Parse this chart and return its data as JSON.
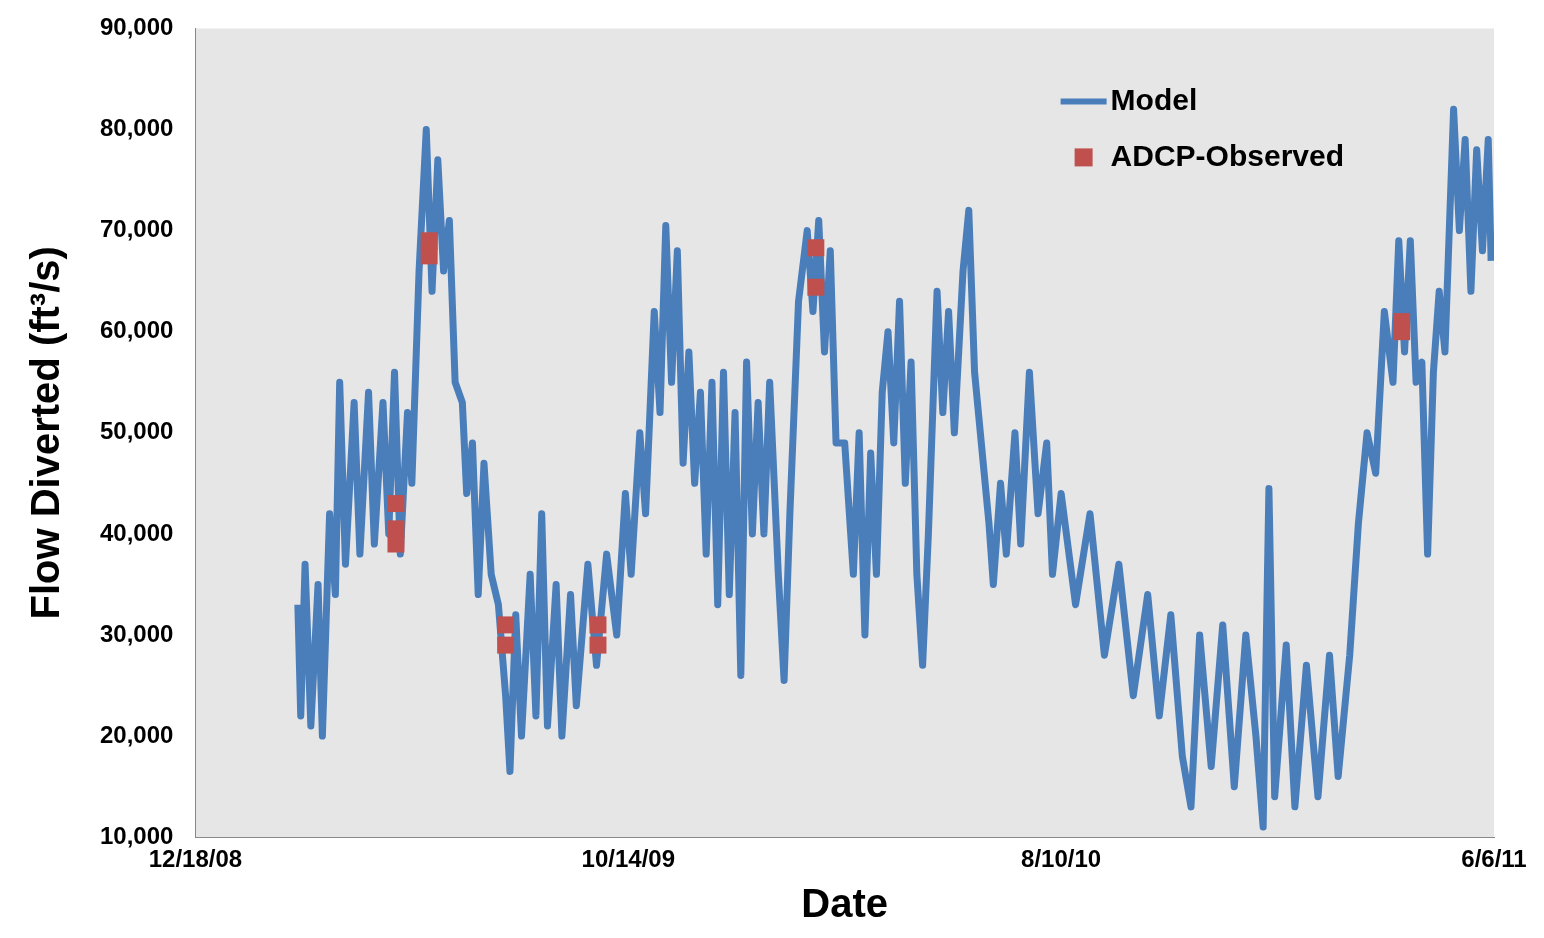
{
  "chart_data": {
    "type": "line",
    "xlabel": "Date",
    "ylabel": "Flow Diverted (ft³/s)",
    "xlim": [
      "2008-12-18",
      "2011-06-06"
    ],
    "xticks": [
      {
        "value": "2008-12-18",
        "label": "12/18/08"
      },
      {
        "value": "2009-10-14",
        "label": "10/14/09"
      },
      {
        "value": "2010-08-10",
        "label": "8/10/10"
      },
      {
        "value": "2011-06-06",
        "label": "6/6/11"
      }
    ],
    "ylim": [
      10000,
      90000
    ],
    "yticks": [
      {
        "value": 10000,
        "label": "10,000"
      },
      {
        "value": 20000,
        "label": "20,000"
      },
      {
        "value": 30000,
        "label": "30,000"
      },
      {
        "value": 40000,
        "label": "40,000"
      },
      {
        "value": 50000,
        "label": "50,000"
      },
      {
        "value": 60000,
        "label": "60,000"
      },
      {
        "value": 70000,
        "label": "70,000"
      },
      {
        "value": 80000,
        "label": "80,000"
      },
      {
        "value": 90000,
        "label": "90,000"
      }
    ],
    "grid": false,
    "legend": "top right",
    "series": [
      {
        "name": "Model",
        "type": "line",
        "color": "#4a7ebb",
        "marker": "none",
        "x": [
          "2009-02-27",
          "2009-03-01",
          "2009-03-04",
          "2009-03-08",
          "2009-03-13",
          "2009-03-16",
          "2009-03-21",
          "2009-03-25",
          "2009-03-28",
          "2009-04-01",
          "2009-04-07",
          "2009-04-11",
          "2009-04-17",
          "2009-04-21",
          "2009-04-27",
          "2009-05-01",
          "2009-05-05",
          "2009-05-09",
          "2009-05-14",
          "2009-05-17",
          "2009-05-22",
          "2009-05-27",
          "2009-05-31",
          "2009-06-04",
          "2009-06-08",
          "2009-06-12",
          "2009-06-16",
          "2009-06-21",
          "2009-06-24",
          "2009-06-28",
          "2009-07-02",
          "2009-07-06",
          "2009-07-11",
          "2009-07-16",
          "2009-07-21",
          "2009-07-24",
          "2009-07-28",
          "2009-08-01",
          "2009-08-07",
          "2009-08-11",
          "2009-08-15",
          "2009-08-19",
          "2009-08-25",
          "2009-08-29",
          "2009-09-04",
          "2009-09-08",
          "2009-09-16",
          "2009-09-22",
          "2009-09-29",
          "2009-10-06",
          "2009-10-12",
          "2009-10-16",
          "2009-10-22",
          "2009-10-26",
          "2009-11-01",
          "2009-11-05",
          "2009-11-09",
          "2009-11-13",
          "2009-11-17",
          "2009-11-21",
          "2009-11-25",
          "2009-11-29",
          "2009-12-03",
          "2009-12-07",
          "2009-12-11",
          "2009-12-15",
          "2009-12-19",
          "2009-12-23",
          "2009-12-27",
          "2009-12-31",
          "2010-01-04",
          "2010-01-08",
          "2010-01-12",
          "2010-01-16",
          "2010-01-20",
          "2010-01-26",
          "2010-01-30",
          "2010-02-03",
          "2010-02-09",
          "2010-02-15",
          "2010-02-19",
          "2010-02-23",
          "2010-02-27",
          "2010-03-03",
          "2010-03-07",
          "2010-03-13",
          "2010-03-19",
          "2010-03-23",
          "2010-03-27",
          "2010-03-31",
          "2010-04-04",
          "2010-04-08",
          "2010-04-12",
          "2010-04-16",
          "2010-04-20",
          "2010-04-24",
          "2010-04-28",
          "2010-05-02",
          "2010-05-06",
          "2010-05-10",
          "2010-05-16",
          "2010-05-20",
          "2010-05-24",
          "2010-05-28",
          "2010-06-03",
          "2010-06-07",
          "2010-06-11",
          "2010-06-15",
          "2010-06-21",
          "2010-06-24",
          "2010-06-29",
          "2010-07-03",
          "2010-07-09",
          "2010-07-13",
          "2010-07-19",
          "2010-07-25",
          "2010-07-31",
          "2010-08-04",
          "2010-08-10",
          "2010-08-20",
          "2010-08-30",
          "2010-09-09",
          "2010-09-19",
          "2010-09-29",
          "2010-10-09",
          "2010-10-17",
          "2010-10-25",
          "2010-11-02",
          "2010-11-08",
          "2010-11-14",
          "2010-11-22",
          "2010-11-30",
          "2010-12-08",
          "2010-12-16",
          "2010-12-23",
          "2010-12-28",
          "2011-01-01",
          "2011-01-05",
          "2011-01-13",
          "2011-01-19",
          "2011-01-27",
          "2011-02-04",
          "2011-02-12",
          "2011-02-18",
          "2011-02-26",
          "2011-03-04",
          "2011-03-10",
          "2011-03-16",
          "2011-03-22",
          "2011-03-28",
          "2011-04-01",
          "2011-04-05",
          "2011-04-09",
          "2011-04-13",
          "2011-04-17",
          "2011-04-21",
          "2011-04-25",
          "2011-04-29",
          "2011-05-03",
          "2011-05-09",
          "2011-05-13",
          "2011-05-17",
          "2011-05-21",
          "2011-05-25",
          "2011-05-29",
          "2011-06-02",
          "2011-06-04"
        ],
        "values": [
          33000,
          22000,
          37000,
          21000,
          35000,
          20000,
          42000,
          34000,
          55000,
          37000,
          53000,
          38000,
          54000,
          39000,
          53000,
          40000,
          56000,
          38000,
          52000,
          45000,
          66000,
          80000,
          64000,
          77000,
          66000,
          71000,
          55000,
          53000,
          44000,
          49000,
          34000,
          47000,
          36000,
          33000,
          24000,
          16500,
          32000,
          20000,
          36000,
          22000,
          42000,
          21000,
          35000,
          20000,
          34000,
          23000,
          37000,
          27000,
          38000,
          30000,
          44000,
          36000,
          50000,
          42000,
          62000,
          52000,
          70500,
          55000,
          68000,
          47000,
          58000,
          45000,
          54000,
          38000,
          55000,
          33000,
          56000,
          34000,
          52000,
          26000,
          57000,
          40000,
          53000,
          40000,
          55000,
          36000,
          25500,
          42000,
          63000,
          70000,
          62000,
          71000,
          58000,
          68000,
          49000,
          49000,
          36000,
          50000,
          30000,
          48000,
          36000,
          54000,
          60000,
          49000,
          63000,
          45000,
          57000,
          36000,
          27000,
          40000,
          64000,
          52000,
          62000,
          50000,
          66000,
          72000,
          56000,
          50000,
          41000,
          35000,
          45000,
          38000,
          50000,
          39000,
          56000,
          42000,
          49000,
          36000,
          44000,
          33000,
          42000,
          28000,
          37000,
          24000,
          34000,
          22000,
          32000,
          18000,
          13000,
          30000,
          17000,
          31000,
          15000,
          30000,
          20000,
          11000,
          44500,
          14000,
          29000,
          13000,
          27000,
          14000,
          28000,
          16000,
          28000,
          41000,
          50000,
          46000,
          62000,
          55000,
          69000,
          58000,
          69000,
          55000,
          57000,
          38000,
          56000,
          64000,
          58000,
          82000,
          70000,
          79000,
          64000,
          78000,
          68000,
          79000,
          67000
        ]
      },
      {
        "name": "ADCP-Observed",
        "type": "scatter",
        "color": "#c0504d",
        "marker": "square",
        "x": [
          "2009-05-06",
          "2009-05-06",
          "2009-05-06",
          "2009-05-29",
          "2009-05-29",
          "2009-07-21",
          "2009-07-21",
          "2009-09-23",
          "2009-09-23",
          "2010-02-21",
          "2010-02-21",
          "2011-04-03",
          "2011-04-03"
        ],
        "values": [
          43000,
          40500,
          39000,
          69000,
          67500,
          31000,
          29000,
          31000,
          29000,
          68300,
          64400,
          61000,
          60000
        ]
      }
    ]
  }
}
